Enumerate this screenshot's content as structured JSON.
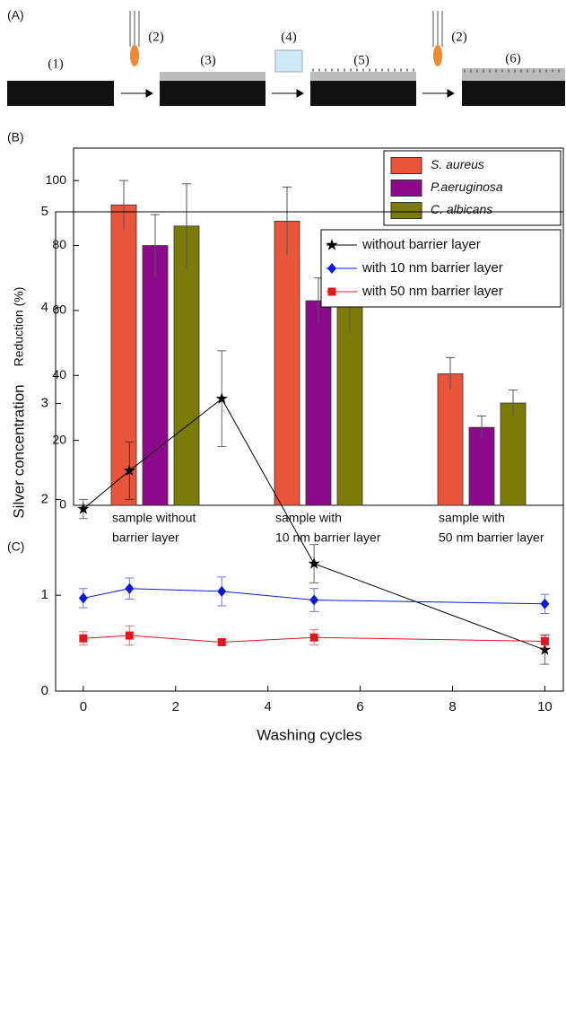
{
  "panel_labels": [
    "(A)",
    "(B)",
    "(C)"
  ],
  "diagram": {
    "labels": [
      "(1)",
      "(2)",
      "(3)",
      "(4)",
      "(5)",
      "(2)",
      "(6)"
    ]
  },
  "chart_data": [
    {
      "type": "bar",
      "y_label": "Reduction (%)",
      "categories": [
        [
          "sample without",
          "barrier layer"
        ],
        [
          "sample with",
          "10 nm barrier layer"
        ],
        [
          "sample with",
          "50 nm barrier layer"
        ]
      ],
      "series": [
        {
          "name": "S. aureus",
          "color": "#e8553a",
          "values": [
            92.5,
            87.5,
            40.5
          ],
          "errors": [
            7.5,
            10.5,
            5
          ]
        },
        {
          "name": "P.aeruginosa",
          "color": "#8b0a8a",
          "values": [
            80,
            63,
            24
          ],
          "errors": [
            9.5,
            7,
            3.5
          ]
        },
        {
          "name": "C. albicans",
          "color": "#7b7b0a",
          "values": [
            86,
            65.5,
            31.5
          ],
          "errors": [
            13,
            12,
            4
          ]
        }
      ],
      "ylim": [
        0,
        110
      ],
      "yticks": [
        0,
        20,
        40,
        60,
        80,
        100
      ],
      "legend": "upper right"
    },
    {
      "type": "line",
      "x_label": "Washing cycles",
      "y_label": "Silver concentration",
      "x": [
        0,
        1,
        3,
        5,
        10
      ],
      "series": [
        {
          "name": "without barrier layer",
          "color": "#000000",
          "marker": "star",
          "values": [
            1.9,
            2.3,
            3.05,
            1.33,
            0.43
          ],
          "errors": [
            0.1,
            0.3,
            0.5,
            0.2,
            0.15
          ]
        },
        {
          "name": "with 10 nm barrier layer",
          "color": "#0a1adc",
          "marker": "diamond",
          "values": [
            0.97,
            1.07,
            1.04,
            0.95,
            0.91
          ],
          "errors": [
            0.1,
            0.11,
            0.15,
            0.12,
            0.1
          ]
        },
        {
          "name": "with 50 nm barrier layer",
          "color": "#e8141e",
          "marker": "square",
          "values": [
            0.55,
            0.58,
            0.51,
            0.56,
            0.52
          ],
          "errors": [
            0.07,
            0.1,
            0.03,
            0.08,
            0.07
          ]
        }
      ],
      "xlim": [
        -0.6,
        10.4
      ],
      "xticks": [
        0,
        2,
        4,
        6,
        8,
        10
      ],
      "ylim": [
        0,
        5
      ],
      "yticks": [
        0,
        1,
        2,
        3,
        4,
        5
      ],
      "legend": "upper right"
    }
  ]
}
